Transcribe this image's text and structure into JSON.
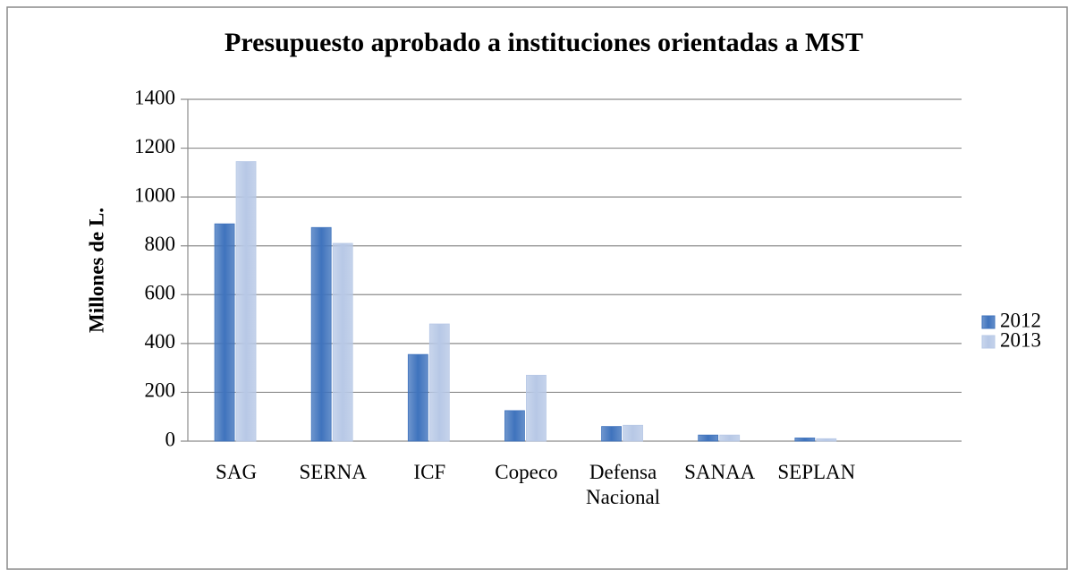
{
  "chart_data": {
    "type": "bar",
    "title": "Presupuesto aprobado a instituciones orientadas a MST",
    "ylabel": "Millones de L.",
    "categories": [
      "SAG",
      "SERNA",
      "ICF",
      "Copeco",
      "Defensa Nacional",
      "SANAA",
      "SEPLAN",
      null
    ],
    "series": [
      {
        "name": "2012",
        "color": "#3f73bd",
        "values": [
          890,
          875,
          355,
          125,
          60,
          25,
          13,
          null
        ]
      },
      {
        "name": "2013",
        "color": "#b7c8e6",
        "values": [
          1145,
          810,
          480,
          270,
          65,
          25,
          10,
          null
        ]
      }
    ],
    "ylim": [
      0,
      1400
    ],
    "yticks": [
      0,
      200,
      400,
      600,
      800,
      1000,
      1200,
      1400
    ],
    "grid": true,
    "legend": "right"
  }
}
